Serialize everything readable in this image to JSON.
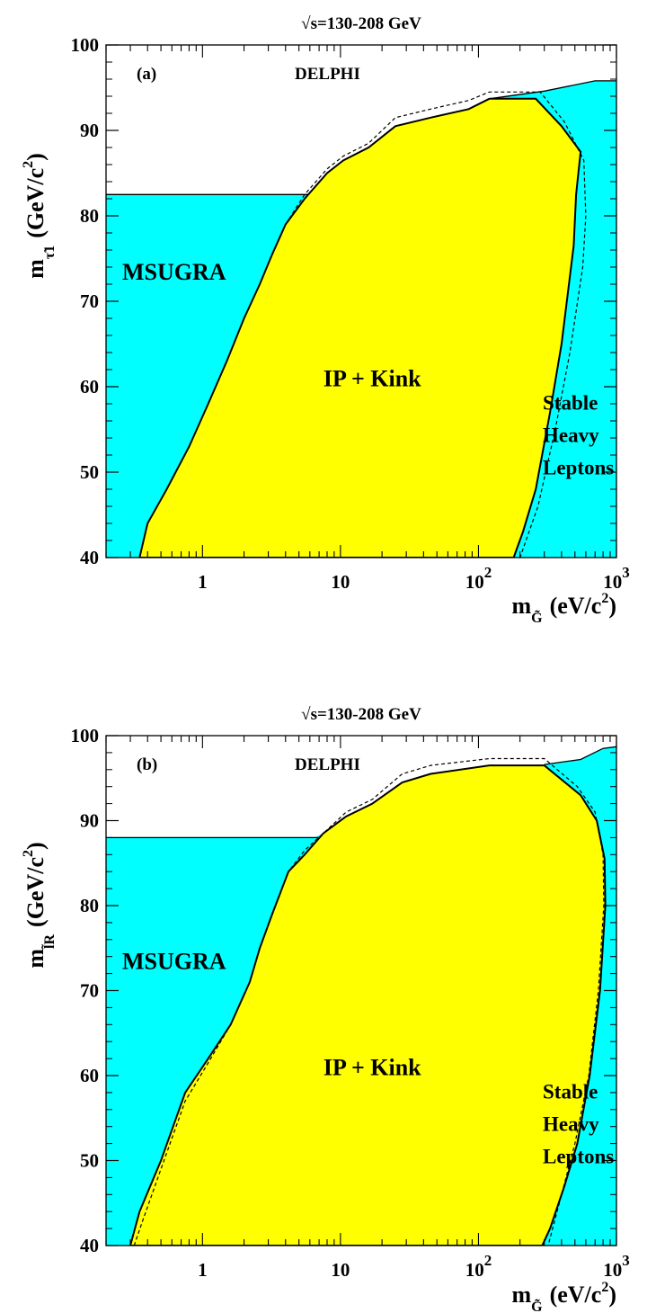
{
  "chart_data": [
    {
      "type": "area",
      "title": "√s=130-208 GeV",
      "panel": "(a)",
      "experiment": "DELPHI",
      "xlabel": "m_G̃ (eV/c²)",
      "ylabel": "m_τ̃1 (GeV/c²)",
      "x_scale": "log",
      "xlim": [
        0.2,
        1000
      ],
      "ylim": [
        40,
        100
      ],
      "xticks": [
        {
          "v": 1,
          "label": "1"
        },
        {
          "v": 10,
          "label": "10"
        },
        {
          "v": 100,
          "label": "10",
          "sup": "2"
        },
        {
          "v": 1000,
          "label": "10",
          "sup": "3"
        }
      ],
      "yticks": [
        40,
        50,
        60,
        70,
        80,
        90,
        100
      ],
      "regions": [
        {
          "name": "MSUGRA",
          "color": "#00ffff",
          "label_at": [
            0.21,
            73.5
          ]
        },
        {
          "name": "IP + Kink",
          "color": "#ffff00",
          "label_at": [
            17,
            61
          ]
        },
        {
          "name": "Stable Heavy Leptons",
          "lines": [
            "Stable",
            "Heavy",
            "Leptons"
          ],
          "color": "#00ffff",
          "label_at": [
            235,
            53.3
          ]
        }
      ],
      "msugra_limit": 82.5,
      "cyan_top_boundary": [
        [
          120,
          93.7
        ],
        [
          300,
          94.6
        ],
        [
          700,
          95.8
        ],
        [
          1000,
          95.8
        ]
      ],
      "yellow_boundary": [
        [
          0.35,
          40
        ],
        [
          0.4,
          44
        ],
        [
          0.55,
          48
        ],
        [
          0.8,
          53
        ],
        [
          1.1,
          58
        ],
        [
          1.5,
          63
        ],
        [
          2.0,
          68
        ],
        [
          2.6,
          72
        ],
        [
          3.2,
          75.5
        ],
        [
          4.0,
          79
        ],
        [
          5.5,
          82
        ],
        [
          8.0,
          85
        ],
        [
          10.5,
          86.5
        ],
        [
          16,
          88
        ],
        [
          25,
          90.5
        ],
        [
          45,
          91.5
        ],
        [
          85,
          92.5
        ],
        [
          120,
          93.7
        ],
        [
          260,
          93.7
        ],
        [
          400,
          90.5
        ],
        [
          550,
          87.5
        ],
        [
          510,
          82.5
        ],
        [
          490,
          76.5
        ],
        [
          400,
          65
        ],
        [
          330,
          57
        ],
        [
          260,
          48
        ],
        [
          210,
          43
        ],
        [
          180,
          40
        ]
      ],
      "dashed_boundary": [
        [
          0.35,
          40
        ],
        [
          0.4,
          44
        ],
        [
          0.55,
          48
        ],
        [
          0.8,
          53
        ],
        [
          1.1,
          58
        ],
        [
          1.5,
          63
        ],
        [
          2.0,
          68
        ],
        [
          2.6,
          72
        ],
        [
          3.2,
          75.5
        ],
        [
          4.0,
          79
        ],
        [
          5.5,
          82.5
        ],
        [
          8.0,
          85.5
        ],
        [
          10.5,
          87
        ],
        [
          16,
          88.5
        ],
        [
          25,
          91.5
        ],
        [
          45,
          92.5
        ],
        [
          85,
          93.5
        ],
        [
          120,
          94.5
        ],
        [
          280,
          94.5
        ],
        [
          420,
          91
        ],
        [
          580,
          86.5
        ],
        [
          600,
          80
        ],
        [
          570,
          74
        ],
        [
          460,
          64
        ],
        [
          360,
          55
        ],
        [
          270,
          46
        ],
        [
          200,
          40
        ]
      ]
    },
    {
      "type": "area",
      "title": "√s=130-208 GeV",
      "panel": "(b)",
      "experiment": "DELPHI",
      "xlabel": "m_G̃ (eV/c²)",
      "ylabel": "m_l̃R (GeV/c²)",
      "x_scale": "log",
      "xlim": [
        0.2,
        1000
      ],
      "ylim": [
        40,
        100
      ],
      "xticks": [
        {
          "v": 1,
          "label": "1"
        },
        {
          "v": 10,
          "label": "10"
        },
        {
          "v": 100,
          "label": "10",
          "sup": "2"
        },
        {
          "v": 1000,
          "label": "10",
          "sup": "3"
        }
      ],
      "yticks": [
        40,
        50,
        60,
        70,
        80,
        90,
        100
      ],
      "regions": [
        {
          "name": "MSUGRA",
          "color": "#00ffff",
          "label_at": [
            0.21,
            73.5
          ]
        },
        {
          "name": "IP + Kink",
          "color": "#ffff00",
          "label_at": [
            17,
            61
          ]
        },
        {
          "name": "Stable Heavy Leptons",
          "lines": [
            "Stable",
            "Heavy",
            "Leptons"
          ],
          "color": "#00ffff",
          "label_at": [
            235,
            53.3
          ]
        }
      ],
      "msugra_limit": 88,
      "cyan_top_boundary": [
        [
          300,
          96.6
        ],
        [
          550,
          97.2
        ],
        [
          800,
          98.5
        ],
        [
          1000,
          98.7
        ]
      ],
      "yellow_boundary": [
        [
          0.3,
          40
        ],
        [
          0.35,
          44
        ],
        [
          0.5,
          50
        ],
        [
          0.75,
          58
        ],
        [
          1.1,
          62
        ],
        [
          1.6,
          66
        ],
        [
          2.2,
          71
        ],
        [
          2.6,
          75
        ],
        [
          3.2,
          79
        ],
        [
          4.2,
          84
        ],
        [
          5.5,
          86
        ],
        [
          7.5,
          88.5
        ],
        [
          11,
          90.5
        ],
        [
          17,
          92
        ],
        [
          28,
          94.5
        ],
        [
          45,
          95.5
        ],
        [
          120,
          96.5
        ],
        [
          300,
          96.5
        ],
        [
          550,
          93
        ],
        [
          720,
          90
        ],
        [
          820,
          85.5
        ],
        [
          830,
          80
        ],
        [
          760,
          70
        ],
        [
          640,
          60
        ],
        [
          520,
          52
        ],
        [
          420,
          47
        ],
        [
          330,
          42
        ],
        [
          290,
          40
        ]
      ],
      "dashed_boundary": [
        [
          0.32,
          40
        ],
        [
          0.37,
          43
        ],
        [
          0.5,
          49
        ],
        [
          0.75,
          57
        ],
        [
          1.1,
          61.5
        ],
        [
          1.6,
          66
        ],
        [
          2.2,
          71
        ],
        [
          2.6,
          75
        ],
        [
          3.2,
          79
        ],
        [
          4.2,
          84
        ],
        [
          5.5,
          86.5
        ],
        [
          7.5,
          88.5
        ],
        [
          11,
          91
        ],
        [
          17,
          92.5
        ],
        [
          28,
          95.5
        ],
        [
          45,
          96.5
        ],
        [
          120,
          97.3
        ],
        [
          300,
          97.3
        ],
        [
          520,
          94
        ],
        [
          700,
          91
        ],
        [
          800,
          86
        ],
        [
          810,
          80
        ],
        [
          740,
          70
        ],
        [
          630,
          60
        ],
        [
          500,
          52
        ],
        [
          400,
          46
        ],
        [
          320,
          40
        ]
      ]
    }
  ]
}
